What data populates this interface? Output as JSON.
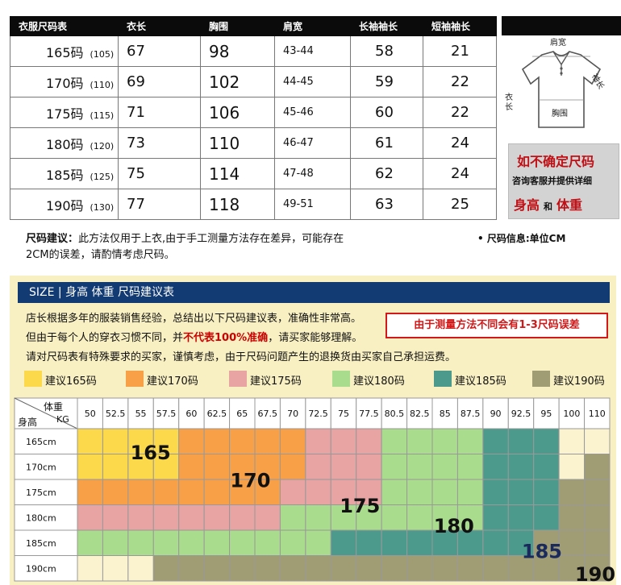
{
  "size_table": {
    "headers": [
      "衣服尺码表",
      "衣长",
      "胸围",
      "肩宽",
      "长袖袖长",
      "短袖袖长"
    ],
    "rows": [
      {
        "size": "165码",
        "sub": "(105)",
        "length": "67",
        "chest": "98",
        "shoulder": "43-44",
        "long_sleeve": "58",
        "short_sleeve": "21"
      },
      {
        "size": "170码",
        "sub": "(110)",
        "length": "69",
        "chest": "102",
        "shoulder": "44-45",
        "long_sleeve": "59",
        "short_sleeve": "22"
      },
      {
        "size": "175码",
        "sub": "(115)",
        "length": "71",
        "chest": "106",
        "shoulder": "45-46",
        "long_sleeve": "60",
        "short_sleeve": "22"
      },
      {
        "size": "180码",
        "sub": "(120)",
        "length": "73",
        "chest": "110",
        "shoulder": "46-47",
        "long_sleeve": "61",
        "short_sleeve": "24"
      },
      {
        "size": "185码",
        "sub": "(125)",
        "length": "75",
        "chest": "114",
        "shoulder": "47-48",
        "long_sleeve": "62",
        "short_sleeve": "24"
      },
      {
        "size": "190码",
        "sub": "(130)",
        "length": "77",
        "chest": "118",
        "shoulder": "49-51",
        "long_sleeve": "63",
        "short_sleeve": "25"
      }
    ]
  },
  "diagram": {
    "shoulder": "肩宽",
    "sleeve": "袖长",
    "length": "衣长",
    "chest": "胸围"
  },
  "advice_box": {
    "title": "如不确定尺码",
    "desc": "咨询客服并提供详细",
    "height": "身高",
    "and": "和",
    "weight": "体重"
  },
  "note": {
    "label": "尺码建议：",
    "text": "此方法仅用于上衣,由于手工测量方法存在差异，可能存在2CM的误差，请酌情考虑尺码。"
  },
  "unit_info": "• 尺码信息:单位CM",
  "recommend": {
    "bar_title": "SIZE | 身高 体重 尺码建议表",
    "line1": "店长根据多年的服装销售经验，总结出以下尺码建议表，准确性非常高。",
    "line2_a": "但由于每个人的穿衣习惯不同，并",
    "line2_red": "不代表100%准确",
    "line2_b": "，请买家能够理解。",
    "line3": "请对尺码表有特殊要求的买家，谨慎考虑，由于尺码问题产生的退换货由买家自己承担运费。",
    "warning": "由于测量方法不同会有1-3尺码误差",
    "legend": [
      {
        "label": "建议165码",
        "color": "#fbd94b"
      },
      {
        "label": "建议170码",
        "color": "#f7a048"
      },
      {
        "label": "建议175码",
        "color": "#e8a3a3"
      },
      {
        "label": "建议180码",
        "color": "#a9dc8c"
      },
      {
        "label": "建议185码",
        "color": "#4c9a8c"
      },
      {
        "label": "建议190码",
        "color": "#a09d74"
      }
    ]
  },
  "chart_data": {
    "type": "heatmap",
    "corner_top": "体重",
    "corner_unit": "KG",
    "corner_left": "身高",
    "columns": [
      "50",
      "52.5",
      "55",
      "57.5",
      "60",
      "62.5",
      "65",
      "67.5",
      "70",
      "72.5",
      "75",
      "77.5",
      "80.5",
      "82.5",
      "85",
      "87.5",
      "90",
      "92.5",
      "95",
      "100",
      "110"
    ],
    "rows": [
      "165cm",
      "170cm",
      "175cm",
      "180cm",
      "185cm",
      "190cm"
    ],
    "cells": [
      [
        165,
        165,
        165,
        165,
        170,
        170,
        170,
        170,
        170,
        175,
        175,
        175,
        180,
        180,
        180,
        180,
        185,
        185,
        185,
        0,
        0
      ],
      [
        165,
        165,
        165,
        165,
        170,
        170,
        170,
        170,
        170,
        175,
        175,
        175,
        180,
        180,
        180,
        180,
        185,
        185,
        185,
        0,
        190
      ],
      [
        170,
        170,
        170,
        170,
        170,
        170,
        170,
        170,
        175,
        175,
        175,
        175,
        180,
        180,
        180,
        180,
        185,
        185,
        185,
        190,
        190
      ],
      [
        175,
        175,
        175,
        175,
        175,
        175,
        175,
        175,
        180,
        180,
        180,
        180,
        180,
        180,
        180,
        180,
        185,
        185,
        185,
        190,
        190
      ],
      [
        180,
        180,
        180,
        180,
        180,
        180,
        180,
        180,
        180,
        180,
        185,
        185,
        185,
        185,
        185,
        185,
        185,
        185,
        190,
        190,
        190
      ],
      [
        0,
        0,
        0,
        190,
        190,
        190,
        190,
        190,
        190,
        190,
        190,
        190,
        190,
        190,
        190,
        190,
        190,
        190,
        190,
        190,
        190
      ]
    ],
    "big_labels": [
      "165",
      "170",
      "175",
      "180",
      "185",
      "190"
    ]
  }
}
